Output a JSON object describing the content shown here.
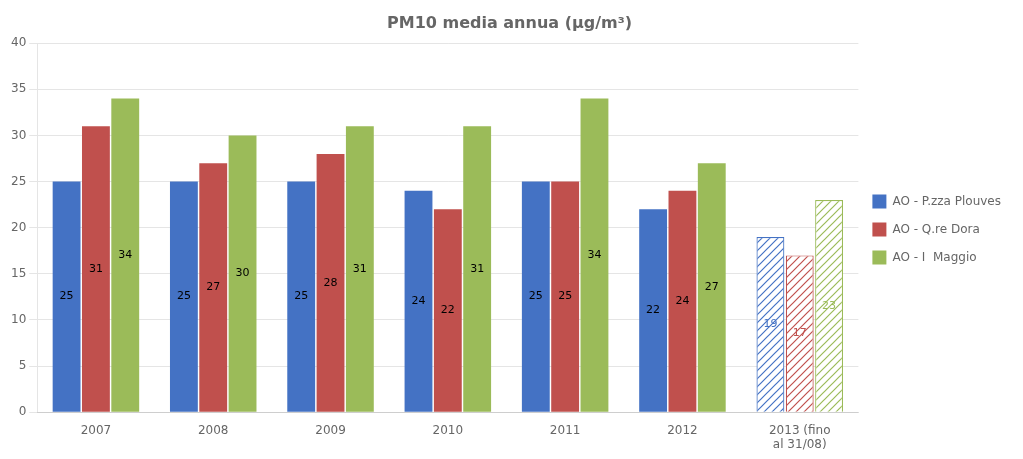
{
  "chart_data": {
    "type": "bar",
    "title": "PM10 media annua (μg/m³)",
    "categories": [
      "2007",
      "2008",
      "2009",
      "2010",
      "2011",
      "2012",
      "2013 (fino\nal 31/08)"
    ],
    "series": [
      {
        "name": "AO - P.zza Plouves",
        "color": "#4472C4",
        "values": [
          25,
          25,
          25,
          24,
          25,
          22,
          19
        ]
      },
      {
        "name": "AO - Q.re Dora",
        "color": "#C0504D",
        "values": [
          31,
          27,
          28,
          22,
          25,
          24,
          17
        ]
      },
      {
        "name": "AO - I  Maggio",
        "color": "#9BBB59",
        "values": [
          34,
          30,
          31,
          31,
          34,
          27,
          23
        ]
      }
    ],
    "ylim": [
      0,
      40
    ],
    "yticks": [
      0,
      5,
      10,
      15,
      20,
      25,
      30,
      35,
      40
    ],
    "grid": true,
    "legend": "right",
    "data_labels": true
  }
}
